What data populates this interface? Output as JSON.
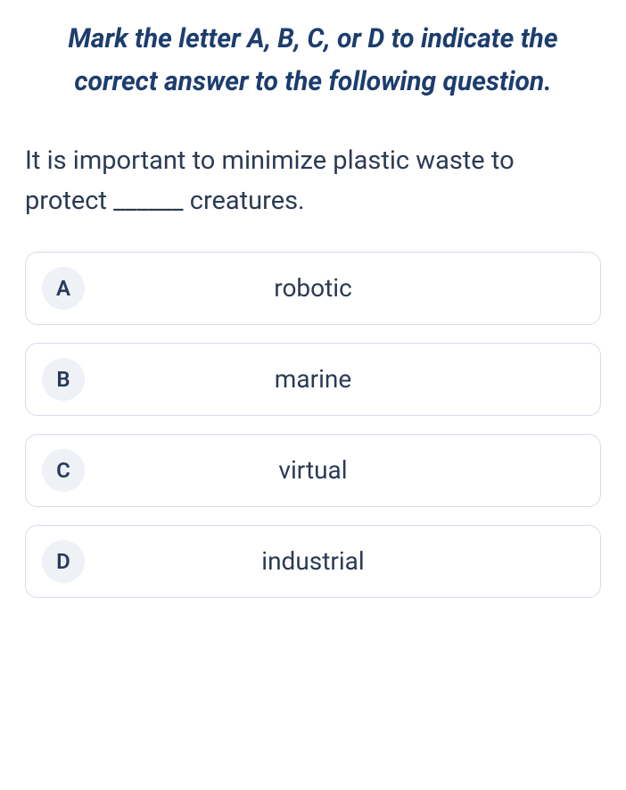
{
  "instruction": "Mark the letter A, B, C, or D to indicate the correct answer to the following question.",
  "question": "It is important to minimize plastic waste to protect ______ creatures.",
  "options": [
    {
      "letter": "A",
      "text": "robotic"
    },
    {
      "letter": "B",
      "text": "marine"
    },
    {
      "letter": "C",
      "text": "virtual"
    },
    {
      "letter": "D",
      "text": "industrial"
    }
  ],
  "colors": {
    "instruction_text": "#1c3d6e",
    "body_text": "#2b3a55",
    "option_border": "#d6dde8",
    "letter_bg": "#eef1f5",
    "background": "#ffffff"
  },
  "typography": {
    "instruction_fontsize": 30,
    "question_fontsize": 29,
    "answer_fontsize": 28,
    "letter_fontsize": 24
  },
  "layout": {
    "option_gap": 20,
    "option_border_radius": 14,
    "letter_circle_diameter": 48
  }
}
